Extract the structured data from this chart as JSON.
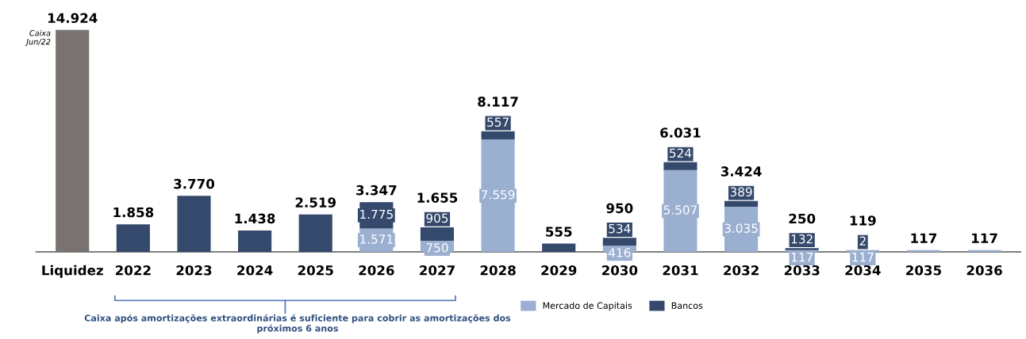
{
  "chart_data": {
    "type": "bar",
    "stacked": true,
    "categories": [
      "Liquidez",
      "2022",
      "2023",
      "2024",
      "2025",
      "2026",
      "2027",
      "2028",
      "2029",
      "2030",
      "2031",
      "2032",
      "2033",
      "2034",
      "2035",
      "2036"
    ],
    "series": [
      {
        "color": "#787370",
        "values": [
          14924,
          null,
          null,
          null,
          null,
          null,
          null,
          null,
          null,
          null,
          null,
          null,
          null,
          null,
          null,
          null
        ],
        "value_labels": [
          null,
          null,
          null,
          null,
          null,
          null,
          null,
          null,
          null,
          null,
          null,
          null,
          null,
          null,
          null,
          null
        ]
      },
      {
        "name": "Mercado de Capitais",
        "color": "#9bafd0",
        "values": [
          null,
          null,
          null,
          null,
          null,
          1571,
          750,
          7559,
          null,
          416,
          5507,
          3035,
          117,
          117,
          117,
          117
        ],
        "value_labels": [
          null,
          null,
          null,
          null,
          null,
          "1.571",
          "750",
          "7.559",
          null,
          "416",
          "5.507",
          "3.035",
          "117",
          "117",
          null,
          null
        ]
      },
      {
        "name": "Bancos",
        "color": "#34496b",
        "values": [
          null,
          1858,
          3770,
          1438,
          2519,
          1775,
          905,
          557,
          555,
          534,
          524,
          389,
          132,
          2,
          null,
          null
        ],
        "value_labels": [
          null,
          null,
          null,
          null,
          null,
          "1.775",
          "905",
          "557",
          null,
          "534",
          "524",
          "389",
          "132",
          "2",
          null,
          null
        ]
      }
    ],
    "totals": [
      "14.924",
      "1.858",
      "3.770",
      "1.438",
      "2.519",
      "3.347",
      "1.655",
      "8.117",
      "555",
      "950",
      "6.031",
      "3.424",
      "250",
      "119",
      "117",
      "117"
    ],
    "legend": "bottom",
    "annotations": [
      {
        "text": "Caixa\nJun/22",
        "x": "Liquidez",
        "y": 14924
      },
      "Caixa após amortizações extraordinárias é suficiente para cobrir as amortizações dos próximos 6 anos"
    ]
  }
}
